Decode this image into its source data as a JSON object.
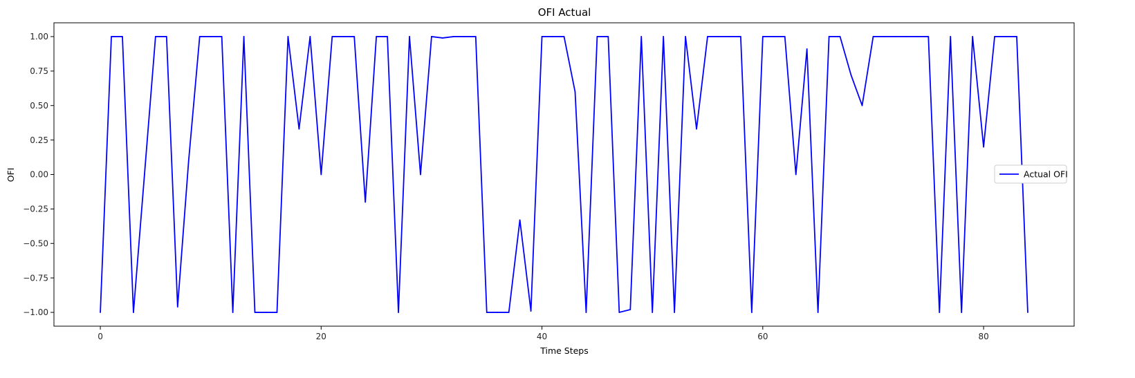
{
  "chart_data": {
    "type": "line",
    "title": "OFI Actual",
    "xlabel": "Time Steps",
    "ylabel": "OFI",
    "xlim": [
      -4.2,
      88.2
    ],
    "ylim": [
      -1.1,
      1.1
    ],
    "xticks": [
      0,
      20,
      40,
      60,
      80
    ],
    "xtick_labels": [
      "0",
      "20",
      "40",
      "60",
      "80"
    ],
    "yticks": [
      -1.0,
      -0.75,
      -0.5,
      -0.25,
      0.0,
      0.25,
      0.5,
      0.75,
      1.0
    ],
    "ytick_labels": [
      "−1.00",
      "−0.75",
      "−0.50",
      "−0.25",
      "0.00",
      "0.25",
      "0.50",
      "0.75",
      "1.00"
    ],
    "grid": false,
    "legend_position": "right",
    "series": [
      {
        "name": "Actual OFI",
        "color": "#0000ff",
        "x": [
          0,
          1,
          2,
          3,
          4,
          5,
          6,
          7,
          8,
          9,
          10,
          11,
          12,
          13,
          14,
          15,
          16,
          17,
          18,
          19,
          20,
          21,
          22,
          23,
          24,
          25,
          26,
          27,
          28,
          29,
          30,
          31,
          32,
          33,
          34,
          35,
          36,
          37,
          38,
          39,
          40,
          41,
          42,
          43,
          44,
          45,
          46,
          47,
          48,
          49,
          50,
          51,
          52,
          53,
          54,
          55,
          56,
          57,
          58,
          59,
          60,
          61,
          62,
          63,
          64,
          65,
          66,
          67,
          68,
          69,
          70,
          71,
          72,
          73,
          74,
          75,
          76,
          77,
          78,
          79,
          80,
          81,
          82,
          83,
          84
        ],
        "values": [
          -1.0,
          1.0,
          1.0,
          -1.0,
          0.0,
          1.0,
          1.0,
          -0.96,
          0.1,
          1.0,
          1.0,
          1.0,
          -1.0,
          1.0,
          -1.0,
          -1.0,
          -1.0,
          1.0,
          0.33,
          1.0,
          0.0,
          1.0,
          1.0,
          1.0,
          -0.2,
          1.0,
          1.0,
          -1.0,
          1.0,
          0.0,
          1.0,
          0.99,
          1.0,
          1.0,
          1.0,
          -1.0,
          -1.0,
          -1.0,
          -0.33,
          -0.99,
          1.0,
          1.0,
          1.0,
          0.6,
          -1.0,
          1.0,
          1.0,
          -1.0,
          -0.98,
          1.0,
          -1.0,
          1.0,
          -1.0,
          1.0,
          0.33,
          1.0,
          1.0,
          1.0,
          1.0,
          -1.0,
          1.0,
          1.0,
          1.0,
          0.0,
          0.91,
          -1.0,
          1.0,
          1.0,
          0.72,
          0.5,
          1.0,
          1.0,
          1.0,
          1.0,
          1.0,
          1.0,
          -1.0,
          1.0,
          -1.0,
          1.0,
          0.2,
          1.0,
          1.0,
          1.0,
          -1.0
        ]
      }
    ]
  }
}
